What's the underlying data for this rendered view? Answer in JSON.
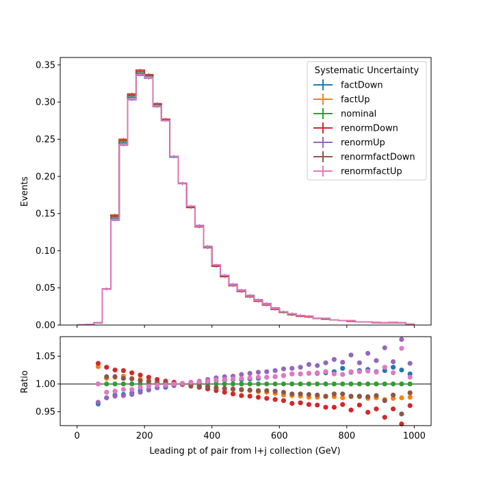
{
  "chart_data": [
    {
      "type": "line",
      "panel": "top",
      "drawstyle": "steps",
      "xlabel": "",
      "ylabel": "Events",
      "xlim": [
        -50,
        1050
      ],
      "ylim": [
        0,
        0.36
      ],
      "yticks": [
        0.0,
        0.05,
        0.1,
        0.15,
        0.2,
        0.25,
        0.3,
        0.35
      ],
      "ytick_labels": [
        "0.00",
        "0.05",
        "0.10",
        "0.15",
        "0.20",
        "0.25",
        "0.30",
        "0.35"
      ],
      "legend_title": "Systematic Uncertainty",
      "legend_position": "top-right",
      "bin_edges": [
        0,
        25,
        50,
        75,
        100,
        125,
        150,
        175,
        200,
        225,
        250,
        275,
        300,
        325,
        350,
        375,
        400,
        425,
        450,
        475,
        500,
        525,
        550,
        575,
        600,
        625,
        650,
        675,
        700,
        725,
        750,
        775,
        800,
        825,
        850,
        875,
        900,
        925,
        950,
        975,
        1000
      ],
      "series": [
        {
          "name": "factDown",
          "color": "#1f77b4",
          "values": [
            0.0005,
            0.001,
            0.003,
            0.0485,
            0.143,
            0.245,
            0.306,
            0.338,
            0.333,
            0.294,
            0.275,
            0.226,
            0.19,
            0.159,
            0.133,
            0.105,
            0.08,
            0.066,
            0.054,
            0.046,
            0.039,
            0.033,
            0.028,
            0.022,
            0.018,
            0.015,
            0.013,
            0.012,
            0.009,
            0.009,
            0.007,
            0.006,
            0.006,
            0.004,
            0.004,
            0.0035,
            0.003,
            0.0035,
            0.003,
            0.0015
          ]
        },
        {
          "name": "factUp",
          "color": "#ff7f0e",
          "values": [
            0.0005,
            0.001,
            0.003,
            0.0485,
            0.147,
            0.249,
            0.31,
            0.341,
            0.336,
            0.297,
            0.276,
            0.227,
            0.19,
            0.159,
            0.132,
            0.105,
            0.08,
            0.066,
            0.053,
            0.045,
            0.038,
            0.033,
            0.027,
            0.022,
            0.017,
            0.014,
            0.012,
            0.012,
            0.009,
            0.008,
            0.007,
            0.006,
            0.006,
            0.004,
            0.004,
            0.0035,
            0.003,
            0.0035,
            0.003,
            0.0015
          ]
        },
        {
          "name": "nominal",
          "color": "#2ca02c",
          "values": [
            0.0005,
            0.001,
            0.003,
            0.0485,
            0.145,
            0.247,
            0.308,
            0.34,
            0.335,
            0.296,
            0.276,
            0.227,
            0.19,
            0.159,
            0.133,
            0.105,
            0.08,
            0.066,
            0.054,
            0.046,
            0.039,
            0.033,
            0.028,
            0.022,
            0.018,
            0.015,
            0.013,
            0.012,
            0.009,
            0.009,
            0.007,
            0.006,
            0.006,
            0.004,
            0.004,
            0.0035,
            0.003,
            0.0035,
            0.003,
            0.0015
          ]
        },
        {
          "name": "renormDown",
          "color": "#d62728",
          "values": [
            0.0005,
            0.001,
            0.003,
            0.0485,
            0.148,
            0.25,
            0.311,
            0.343,
            0.337,
            0.298,
            0.277,
            0.227,
            0.19,
            0.158,
            0.132,
            0.104,
            0.079,
            0.065,
            0.053,
            0.045,
            0.038,
            0.032,
            0.027,
            0.021,
            0.017,
            0.014,
            0.012,
            0.011,
            0.009,
            0.008,
            0.007,
            0.006,
            0.005,
            0.004,
            0.004,
            0.003,
            0.003,
            0.003,
            0.003,
            0.0015
          ]
        },
        {
          "name": "renormUp",
          "color": "#9467bd",
          "values": [
            0.0005,
            0.001,
            0.003,
            0.0485,
            0.141,
            0.242,
            0.303,
            0.336,
            0.332,
            0.294,
            0.275,
            0.227,
            0.191,
            0.16,
            0.134,
            0.106,
            0.081,
            0.067,
            0.055,
            0.047,
            0.04,
            0.034,
            0.029,
            0.023,
            0.018,
            0.015,
            0.013,
            0.012,
            0.009,
            0.009,
            0.007,
            0.006,
            0.006,
            0.004,
            0.004,
            0.0035,
            0.003,
            0.0035,
            0.003,
            0.0015
          ]
        },
        {
          "name": "renormfactDown",
          "color": "#8c564b",
          "values": [
            0.0005,
            0.001,
            0.003,
            0.0485,
            0.146,
            0.248,
            0.309,
            0.341,
            0.336,
            0.297,
            0.276,
            0.227,
            0.19,
            0.159,
            0.133,
            0.104,
            0.08,
            0.066,
            0.053,
            0.046,
            0.038,
            0.033,
            0.027,
            0.022,
            0.017,
            0.014,
            0.013,
            0.012,
            0.009,
            0.008,
            0.007,
            0.006,
            0.006,
            0.004,
            0.004,
            0.0035,
            0.003,
            0.0035,
            0.003,
            0.0015
          ]
        },
        {
          "name": "renormfactUp",
          "color": "#e377c2",
          "values": [
            0.0005,
            0.001,
            0.003,
            0.0485,
            0.142,
            0.243,
            0.304,
            0.337,
            0.333,
            0.295,
            0.275,
            0.227,
            0.19,
            0.16,
            0.133,
            0.105,
            0.081,
            0.067,
            0.054,
            0.046,
            0.039,
            0.033,
            0.028,
            0.022,
            0.018,
            0.015,
            0.013,
            0.012,
            0.009,
            0.009,
            0.007,
            0.006,
            0.006,
            0.004,
            0.004,
            0.0035,
            0.003,
            0.0035,
            0.003,
            0.0015
          ]
        }
      ]
    },
    {
      "type": "scatter",
      "panel": "bottom",
      "xlabel": "Leading pt of pair from l+j collection (GeV)",
      "ylabel": "Ratio",
      "xlim": [
        -50,
        1050
      ],
      "ylim": [
        0.925,
        1.085
      ],
      "reference_line": 1.0,
      "xticks": [
        0,
        200,
        400,
        600,
        800,
        1000
      ],
      "xtick_labels": [
        "0",
        "200",
        "400",
        "600",
        "800",
        "1000"
      ],
      "yticks": [
        0.95,
        1.0,
        1.05
      ],
      "ytick_labels": [
        "0.95",
        "1.00",
        "1.05"
      ],
      "x": [
        62.5,
        87.5,
        112.5,
        137.5,
        162.5,
        187.5,
        212.5,
        237.5,
        262.5,
        287.5,
        312.5,
        337.5,
        362.5,
        387.5,
        412.5,
        437.5,
        462.5,
        487.5,
        512.5,
        537.5,
        562.5,
        587.5,
        612.5,
        637.5,
        662.5,
        687.5,
        712.5,
        737.5,
        762.5,
        787.5,
        812.5,
        837.5,
        862.5,
        887.5,
        912.5,
        937.5,
        962.5,
        987.5
      ],
      "series": [
        {
          "name": "factDown",
          "color": "#1f77b4",
          "values": [
            0.964,
            0.975,
            0.98,
            0.981,
            0.984,
            0.988,
            0.99,
            0.993,
            0.994,
            0.997,
            0.999,
            1.001,
            1.002,
            1.004,
            1.006,
            1.007,
            1.008,
            1.008,
            1.009,
            1.01,
            1.012,
            1.013,
            1.015,
            1.018,
            1.018,
            1.019,
            1.019,
            1.02,
            1.022,
            1.028,
            1.021,
            1.024,
            1.026,
            1.022,
            1.024,
            1.03,
            1.025,
            1.018
          ]
        },
        {
          "name": "factUp",
          "color": "#ff7f0e",
          "values": [
            1.031,
            1.01,
            1.012,
            1.014,
            1.01,
            1.008,
            1.006,
            1.004,
            1.002,
            1.001,
            0.999,
            0.997,
            0.996,
            0.995,
            0.993,
            0.991,
            0.99,
            0.989,
            0.988,
            0.986,
            0.985,
            0.983,
            0.98,
            0.979,
            0.978,
            0.976,
            0.976,
            0.977,
            0.977,
            0.975,
            0.977,
            0.977,
            0.974,
            0.975,
            0.972,
            0.974,
            0.975,
            0.976
          ]
        },
        {
          "name": "nominal",
          "color": "#2ca02c",
          "values": [
            1.0,
            1.0,
            1.0,
            1.0,
            1.0,
            1.0,
            1.0,
            1.0,
            1.0,
            1.0,
            1.0,
            1.0,
            1.0,
            1.0,
            1.0,
            1.0,
            1.0,
            1.0,
            1.0,
            1.0,
            1.0,
            1.0,
            1.0,
            1.0,
            1.0,
            1.0,
            1.0,
            1.0,
            1.0,
            1.0,
            1.0,
            1.0,
            1.0,
            1.0,
            1.0,
            1.0,
            1.0,
            1.0
          ]
        },
        {
          "name": "renormDown",
          "color": "#d62728",
          "values": [
            1.037,
            1.03,
            1.025,
            1.024,
            1.02,
            1.016,
            1.012,
            1.008,
            1.005,
            1.003,
            1.0,
            0.996,
            0.994,
            0.991,
            0.988,
            0.985,
            0.982,
            0.979,
            0.978,
            0.976,
            0.974,
            0.972,
            0.97,
            0.965,
            0.966,
            0.963,
            0.962,
            0.958,
            0.958,
            0.963,
            0.953,
            0.962,
            0.949,
            0.955,
            0.94,
            0.955,
            0.928,
            0.961
          ]
        },
        {
          "name": "renormUp",
          "color": "#9467bd",
          "values": [
            0.967,
            0.975,
            0.978,
            0.979,
            0.981,
            0.985,
            0.989,
            0.993,
            0.996,
            0.998,
            1.001,
            1.003,
            1.005,
            1.008,
            1.011,
            1.013,
            1.014,
            1.017,
            1.019,
            1.021,
            1.022,
            1.024,
            1.027,
            1.028,
            1.03,
            1.035,
            1.033,
            1.038,
            1.044,
            1.039,
            1.052,
            1.038,
            1.055,
            1.042,
            1.065,
            1.04,
            1.08,
            1.037
          ]
        },
        {
          "name": "renormfactDown",
          "color": "#8c564b",
          "values": [
            1.0,
            1.013,
            1.013,
            1.01,
            1.009,
            1.006,
            1.004,
            1.002,
            1.002,
            1.0,
            0.999,
            0.997,
            0.996,
            0.995,
            0.993,
            0.992,
            0.991,
            0.99,
            0.989,
            0.988,
            0.988,
            0.987,
            0.985,
            0.982,
            0.982,
            0.981,
            0.98,
            0.978,
            0.982,
            0.982,
            0.978,
            0.978,
            0.977,
            0.979,
            0.97,
            0.98,
            0.946,
            0.984
          ]
        },
        {
          "name": "renormfactUp",
          "color": "#e377c2",
          "values": [
            1.0,
            0.985,
            0.987,
            0.99,
            0.99,
            0.994,
            0.996,
            0.998,
            0.998,
            1.0,
            1.001,
            1.003,
            1.004,
            1.005,
            1.007,
            1.008,
            1.009,
            1.01,
            1.011,
            1.012,
            1.012,
            1.013,
            1.015,
            1.018,
            1.018,
            1.019,
            1.02,
            1.022,
            1.018,
            1.017,
            1.022,
            1.022,
            1.023,
            1.021,
            1.03,
            1.02,
            1.064,
            1.012
          ]
        }
      ]
    }
  ]
}
